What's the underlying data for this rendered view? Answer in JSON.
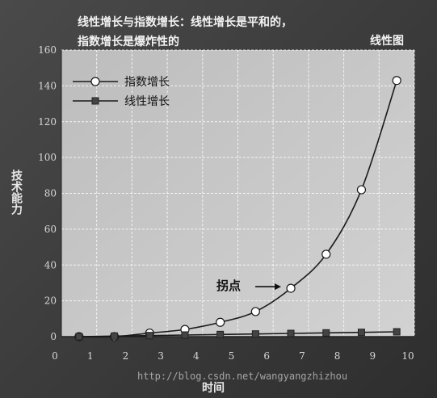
{
  "header": {
    "line1": "线性增长与指数增长：线性增长是平和的，",
    "line2": "指数增长是爆炸性的"
  },
  "chart_tag": "线性图",
  "watermark": "http://blog.csdn.net/wangyangzhizhou",
  "chart_data": {
    "type": "line",
    "title": "",
    "xlabel": "时间",
    "ylabel": "技术能力",
    "xlim": [
      0,
      10
    ],
    "ylim": [
      0,
      160
    ],
    "x_ticks": [
      0,
      1,
      2,
      3,
      4,
      5,
      6,
      7,
      8,
      9,
      10
    ],
    "y_ticks": [
      0,
      20,
      40,
      60,
      80,
      100,
      120,
      140,
      160
    ],
    "grid": true,
    "legend_position": "top-left",
    "series": [
      {
        "name": "指数增长",
        "marker": "circle",
        "x": [
          0.5,
          1.5,
          2.5,
          3.5,
          4.5,
          5.5,
          6.5,
          7.5,
          8.5,
          9.5
        ],
        "y": [
          0,
          0,
          2,
          4,
          8,
          14,
          27,
          46,
          82,
          143
        ]
      },
      {
        "name": "线性增长",
        "marker": "square",
        "x": [
          0.5,
          1.5,
          2.5,
          3.5,
          4.5,
          5.5,
          6.5,
          7.5,
          8.5,
          9.5
        ],
        "y": [
          0,
          0.3,
          0.6,
          0.9,
          1.2,
          1.5,
          1.8,
          2.1,
          2.4,
          2.7
        ]
      }
    ],
    "annotations": [
      {
        "text": "拐点",
        "target_x": 6.5,
        "target_y": 27
      }
    ],
    "colors": {
      "plot_bg": "#c9c9c9",
      "line": "#1a1a1a",
      "marker_fill": "#ffffff",
      "square_fill": "#444444"
    }
  }
}
